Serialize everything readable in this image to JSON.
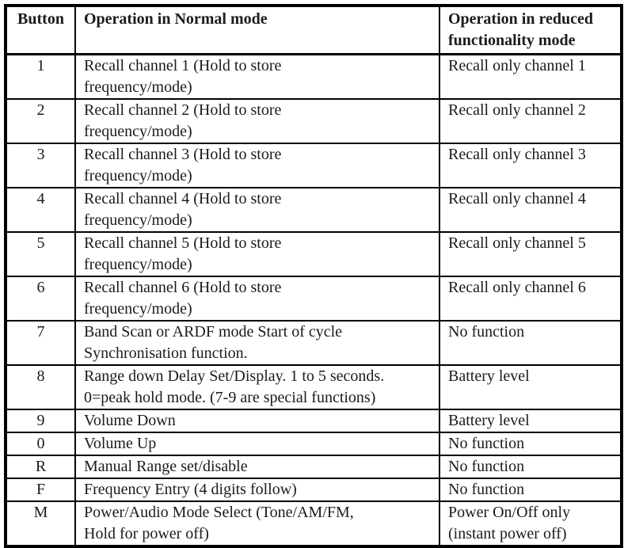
{
  "document": {
    "type": "manual-page-table",
    "background_color": "#ffffff",
    "border_color": "#000000",
    "text_color": "#1b1b1b"
  },
  "table": {
    "headers": [
      {
        "label": "Button"
      },
      {
        "label": "Operation in Normal mode"
      },
      {
        "label": "Operation in reduced\nfunctionality mode"
      }
    ],
    "rows": [
      {
        "button": "1",
        "normal": "Recall channel 1 (Hold to store\nfrequency/mode)",
        "reduced": "Recall only channel 1"
      },
      {
        "button": "2",
        "normal": "Recall channel 2 (Hold to store\nfrequency/mode)",
        "reduced": "Recall only channel 2"
      },
      {
        "button": "3",
        "normal": "Recall channel 3 (Hold to store\nfrequency/mode)",
        "reduced": "Recall only channel 3"
      },
      {
        "button": "4",
        "normal": "Recall channel 4 (Hold to store\nfrequency/mode)",
        "reduced": "Recall only channel 4"
      },
      {
        "button": "5",
        "normal": "Recall channel 5 (Hold to store\nfrequency/mode)",
        "reduced": "Recall only channel 5"
      },
      {
        "button": "6",
        "normal": "Recall channel 6 (Hold to store\nfrequency/mode)",
        "reduced": "Recall only channel 6"
      },
      {
        "button": "7",
        "normal": "Band Scan or ARDF mode Start of cycle\nSynchronisation function.",
        "reduced": "No function"
      },
      {
        "button": "8",
        "normal": "Range down Delay Set/Display. 1 to 5 seconds.\n0=peak hold mode. (7-9 are special functions)",
        "reduced": "Battery level"
      },
      {
        "button": "9",
        "normal": "Volume Down",
        "reduced": "Battery level"
      },
      {
        "button": "0",
        "normal": "Volume Up",
        "reduced": "No function"
      },
      {
        "button": "R",
        "normal": "Manual Range set/disable",
        "reduced": "No function"
      },
      {
        "button": "F",
        "normal": "Frequency Entry (4 digits follow)",
        "reduced": "No function"
      },
      {
        "button": "M",
        "normal": "Power/Audio Mode Select (Tone/AM/FM,\nHold for power off)",
        "reduced": "Power On/Off only\n(instant power off)"
      }
    ]
  }
}
